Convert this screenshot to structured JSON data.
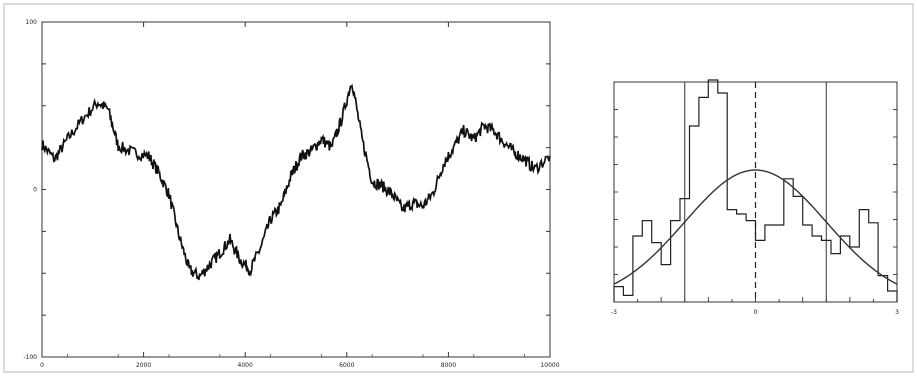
{
  "chart_data": [
    {
      "type": "line",
      "title": "",
      "xlabel": "",
      "ylabel": "",
      "xlim": [
        0,
        10000
      ],
      "ylim": [
        -100,
        100
      ],
      "x_ticks": [
        0,
        2000,
        4000,
        6000,
        8000,
        10000
      ],
      "x_tick_labels": [
        "0",
        "2000",
        "4000",
        "6000",
        "8000",
        "10000"
      ],
      "y_tick_labels": [
        "100",
        "0",
        "-100"
      ],
      "y_tick_values": [
        100,
        0,
        -100
      ],
      "grid": false,
      "series": [
        {
          "x": [
            0,
            250,
            500,
            800,
            1100,
            1300,
            1500,
            1800,
            2100,
            2300,
            2500,
            2700,
            2900,
            3100,
            3300,
            3500,
            3700,
            3900,
            4100,
            4300,
            4500,
            4700,
            4900,
            5100,
            5300,
            5500,
            5700,
            5900,
            6100,
            6300,
            6500,
            6700,
            6900,
            7100,
            7300,
            7500,
            7700,
            7900,
            8100,
            8300,
            8500,
            8700,
            8900,
            9100,
            9300,
            9500,
            9700,
            10000
          ],
          "y": [
            27,
            18,
            30,
            42,
            52,
            48,
            26,
            22,
            20,
            10,
            -3,
            -28,
            -48,
            -52,
            -45,
            -38,
            -30,
            -42,
            -48,
            -35,
            -18,
            -10,
            8,
            20,
            23,
            30,
            25,
            42,
            65,
            30,
            5,
            2,
            -3,
            -12,
            -8,
            -10,
            -2,
            15,
            25,
            35,
            30,
            38,
            35,
            28,
            22,
            18,
            12,
            20
          ],
          "style": "noisy"
        }
      ]
    },
    {
      "type": "histogram",
      "title": "",
      "xlabel": "",
      "ylabel": "",
      "xlim": [
        -3,
        3
      ],
      "ylim": [
        0,
        1
      ],
      "x_tick_labels": [
        "-3",
        "0",
        "3"
      ],
      "bin_edges": [
        -3,
        -2.8,
        -2.6,
        -2.4,
        -2.2,
        -2.0,
        -1.8,
        -1.6,
        -1.4,
        -1.2,
        -1.0,
        -0.8,
        -0.6,
        -0.4,
        -0.2,
        0,
        0.2,
        0.4,
        0.6,
        0.8,
        1.0,
        1.2,
        1.4,
        1.6,
        1.8,
        2.0,
        2.2,
        2.4,
        2.6,
        2.8,
        3.0
      ],
      "bin_values": [
        0.07,
        0.03,
        0.3,
        0.37,
        0.27,
        0.17,
        0.37,
        0.47,
        0.8,
        0.93,
        1.02,
        0.95,
        0.42,
        0.4,
        0.37,
        0.28,
        0.35,
        0.35,
        0.56,
        0.48,
        0.35,
        0.3,
        0.28,
        0.22,
        0.3,
        0.25,
        0.42,
        0.36,
        0.12,
        0.05
      ],
      "gaussian": {
        "mean": 0,
        "sigma": 1.5,
        "peak": 0.6
      },
      "vlines_solid": [
        -1.5,
        1.5
      ],
      "vline_dashed": 0
    }
  ]
}
